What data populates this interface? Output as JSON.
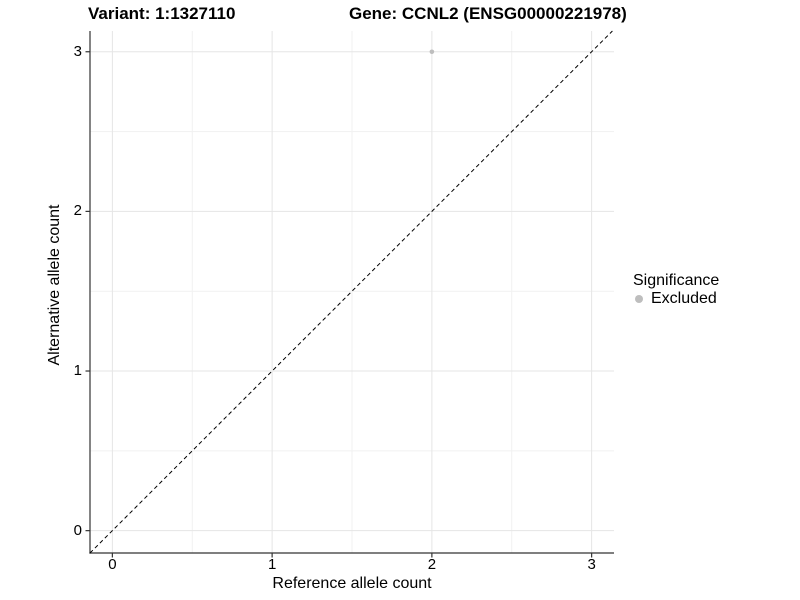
{
  "chart_data": {
    "type": "scatter",
    "titles": {
      "variant": "Variant: 1:1327110",
      "gene": "Gene: CCNL2 (ENSG00000221978)"
    },
    "xlabel": "Reference allele count",
    "ylabel": "Alternative allele count",
    "x_ticks": [
      0,
      1,
      2,
      3
    ],
    "y_ticks": [
      0,
      1,
      2,
      3
    ],
    "xlim": [
      -0.14,
      3.14
    ],
    "ylim": [
      -0.14,
      3.13
    ],
    "minor_grid_step": 0.5,
    "grid": true,
    "series": [
      {
        "name": "Excluded",
        "color": "#bebebe",
        "points": [
          {
            "x": 2,
            "y": 3
          }
        ]
      }
    ],
    "identity_line": {
      "style": "dashed",
      "color": "#000000",
      "slope": 1,
      "intercept": 0
    },
    "legend": {
      "title": "Significance",
      "position": "right",
      "entries": [
        {
          "label": "Excluded",
          "color": "#bebebe"
        }
      ]
    },
    "colors": {
      "background": "#ffffff",
      "grid_major": "#e5e5e5",
      "grid_minor": "#f1f1f1",
      "axis_line": "#333333",
      "tick_mark": "#333333",
      "text": "#000000"
    }
  }
}
